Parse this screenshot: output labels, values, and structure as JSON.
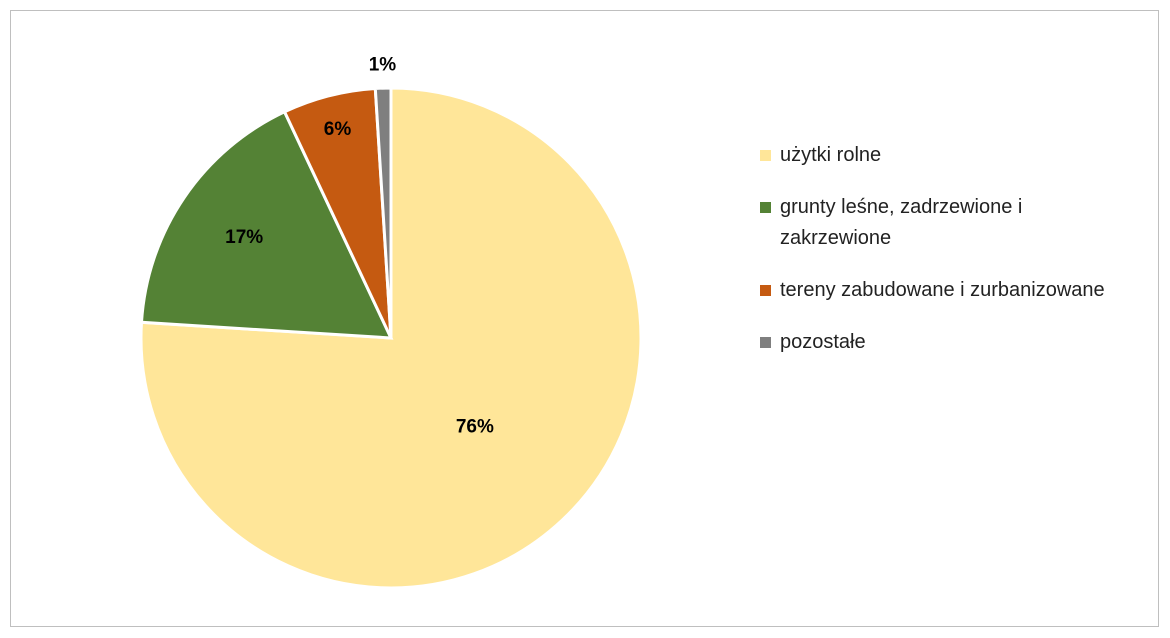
{
  "chart_data": {
    "type": "pie",
    "categories": [
      "użytki rolne",
      "grunty leśne, zadrzewione i zakrzewione",
      "tereny zabudowane i zurbanizowane",
      "pozostałe"
    ],
    "values": [
      76,
      17,
      6,
      1
    ],
    "value_labels": [
      "76%",
      "17%",
      "6%",
      "1%"
    ],
    "colors": [
      "#ffe699",
      "#548235",
      "#c55a11",
      "#7f7f7f"
    ]
  }
}
